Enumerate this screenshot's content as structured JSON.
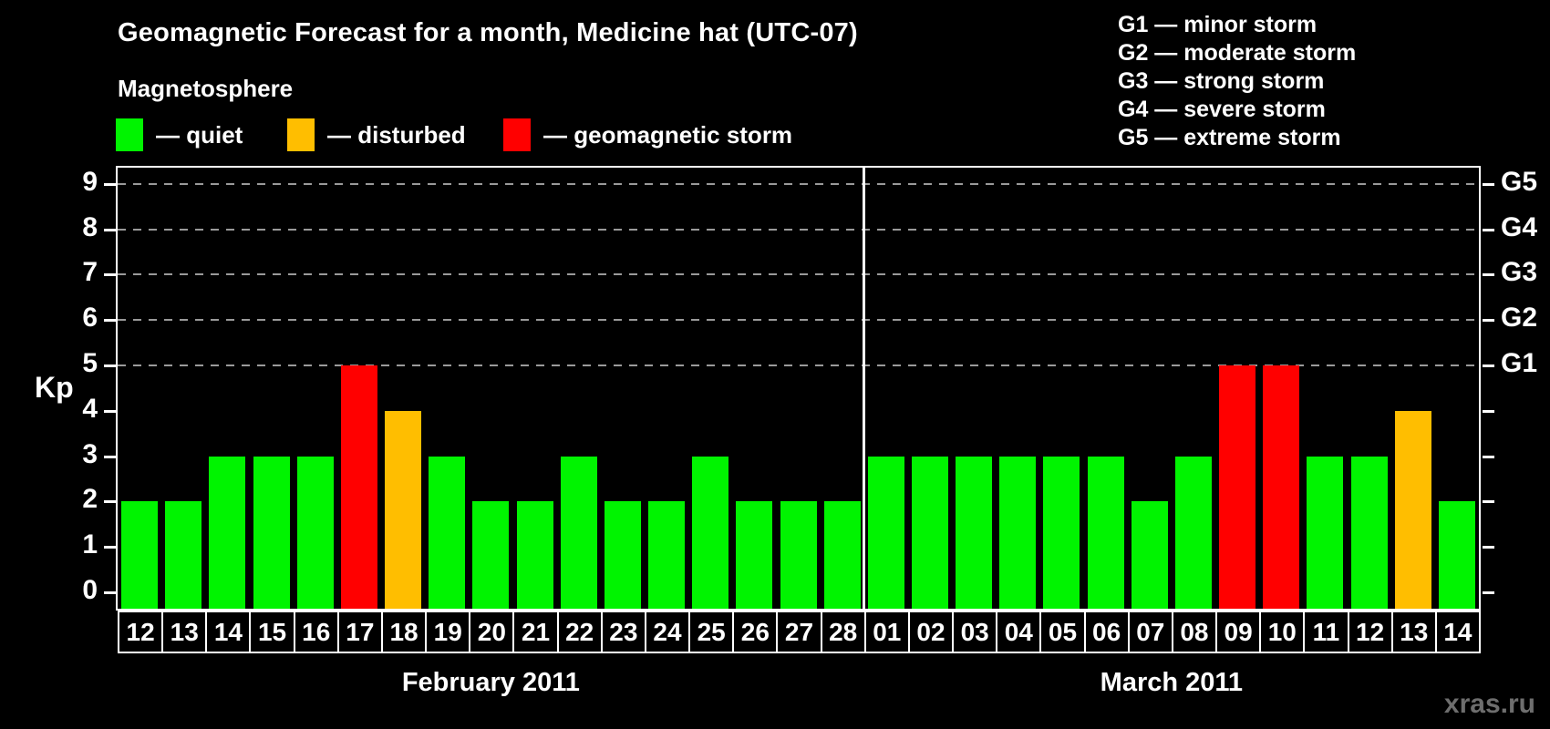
{
  "title": "Geomagnetic Forecast for a month, Medicine hat (UTC-07)",
  "legend": {
    "heading": "Magnetosphere",
    "items": [
      {
        "key": "quiet",
        "label": "— quiet",
        "color": "#00f400"
      },
      {
        "key": "disturbed",
        "label": "— disturbed",
        "color": "#ffbe00"
      },
      {
        "key": "storm",
        "label": "— geomagnetic storm",
        "color": "#ff0000"
      }
    ]
  },
  "storm_scale": [
    "G1 — minor storm",
    "G2 — moderate storm",
    "G3 — strong storm",
    "G4 — severe storm",
    "G5 — extreme storm"
  ],
  "watermark": "xras.ru",
  "chart_data": {
    "type": "bar",
    "ylabel": "Kp",
    "ylim": [
      0,
      9
    ],
    "yticks": [
      0,
      1,
      2,
      3,
      4,
      5,
      6,
      7,
      8,
      9
    ],
    "grid_kp": [
      5,
      6,
      7,
      8,
      9
    ],
    "grid_style": "dashed",
    "right_axis_labels": [
      {
        "kp": 9,
        "label": "G5"
      },
      {
        "kp": 8,
        "label": "G4"
      },
      {
        "kp": 7,
        "label": "G3"
      },
      {
        "kp": 6,
        "label": "G2"
      },
      {
        "kp": 5,
        "label": "G1"
      }
    ],
    "status_colors": {
      "quiet": "#00f400",
      "disturbed": "#ffbe00",
      "storm": "#ff0000"
    },
    "months": [
      {
        "label": "February 2011",
        "days": [
          {
            "day": "12",
            "kp": 2,
            "status": "quiet"
          },
          {
            "day": "13",
            "kp": 2,
            "status": "quiet"
          },
          {
            "day": "14",
            "kp": 3,
            "status": "quiet"
          },
          {
            "day": "15",
            "kp": 3,
            "status": "quiet"
          },
          {
            "day": "16",
            "kp": 3,
            "status": "quiet"
          },
          {
            "day": "17",
            "kp": 5,
            "status": "storm"
          },
          {
            "day": "18",
            "kp": 4,
            "status": "disturbed"
          },
          {
            "day": "19",
            "kp": 3,
            "status": "quiet"
          },
          {
            "day": "20",
            "kp": 2,
            "status": "quiet"
          },
          {
            "day": "21",
            "kp": 2,
            "status": "quiet"
          },
          {
            "day": "22",
            "kp": 3,
            "status": "quiet"
          },
          {
            "day": "23",
            "kp": 2,
            "status": "quiet"
          },
          {
            "day": "24",
            "kp": 2,
            "status": "quiet"
          },
          {
            "day": "25",
            "kp": 3,
            "status": "quiet"
          },
          {
            "day": "26",
            "kp": 2,
            "status": "quiet"
          },
          {
            "day": "27",
            "kp": 2,
            "status": "quiet"
          },
          {
            "day": "28",
            "kp": 2,
            "status": "quiet"
          }
        ]
      },
      {
        "label": "March 2011",
        "days": [
          {
            "day": "01",
            "kp": 3,
            "status": "quiet"
          },
          {
            "day": "02",
            "kp": 3,
            "status": "quiet"
          },
          {
            "day": "03",
            "kp": 3,
            "status": "quiet"
          },
          {
            "day": "04",
            "kp": 3,
            "status": "quiet"
          },
          {
            "day": "05",
            "kp": 3,
            "status": "quiet"
          },
          {
            "day": "06",
            "kp": 3,
            "status": "quiet"
          },
          {
            "day": "07",
            "kp": 2,
            "status": "quiet"
          },
          {
            "day": "08",
            "kp": 3,
            "status": "quiet"
          },
          {
            "day": "09",
            "kp": 5,
            "status": "storm"
          },
          {
            "day": "10",
            "kp": 5,
            "status": "storm"
          },
          {
            "day": "11",
            "kp": 3,
            "status": "quiet"
          },
          {
            "day": "12",
            "kp": 3,
            "status": "quiet"
          },
          {
            "day": "13",
            "kp": 4,
            "status": "disturbed"
          },
          {
            "day": "14",
            "kp": 2,
            "status": "quiet"
          }
        ]
      }
    ]
  }
}
